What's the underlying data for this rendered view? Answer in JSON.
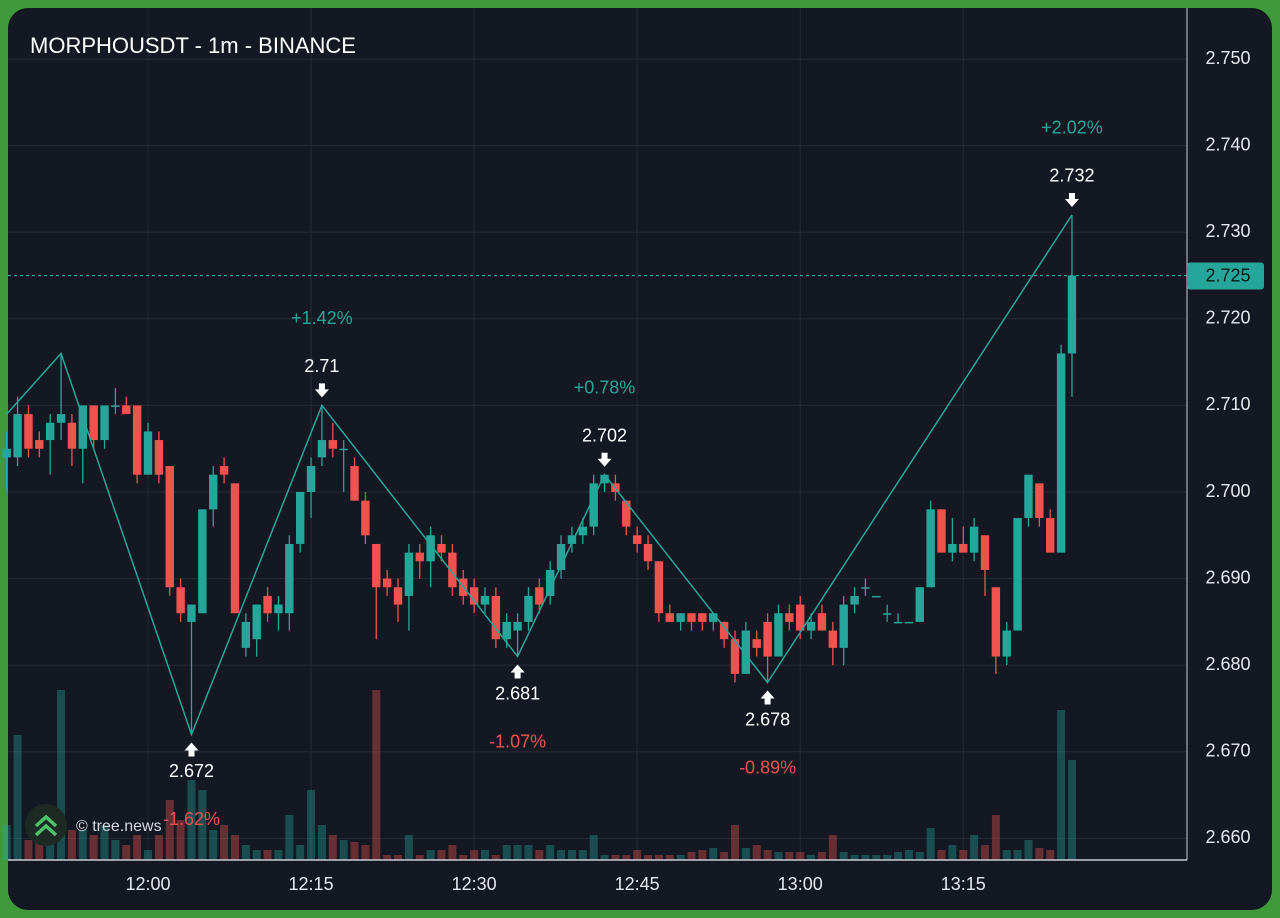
{
  "chart_data": {
    "type": "candlestick",
    "title": "MORPHOUSDT - 1m - BINANCE",
    "watermark": "© tree.news",
    "x": [
      "11:47",
      "11:48",
      "11:49",
      "11:50",
      "11:51",
      "11:52",
      "11:53",
      "11:54",
      "11:55",
      "11:56",
      "11:57",
      "11:58",
      "11:59",
      "12:00",
      "12:01",
      "12:02",
      "12:03",
      "12:04",
      "12:05",
      "12:06",
      "12:07",
      "12:08",
      "12:09",
      "12:10",
      "12:11",
      "12:12",
      "12:13",
      "12:14",
      "12:15",
      "12:16",
      "12:17",
      "12:18",
      "12:19",
      "12:20",
      "12:21",
      "12:22",
      "12:23",
      "12:24",
      "12:25",
      "12:26",
      "12:27",
      "12:28",
      "12:29",
      "12:30",
      "12:31",
      "12:32",
      "12:33",
      "12:34",
      "12:35",
      "12:36",
      "12:37",
      "12:38",
      "12:39",
      "12:40",
      "12:41",
      "12:42",
      "12:43",
      "12:44",
      "12:45",
      "12:46",
      "12:47",
      "12:48",
      "12:49",
      "12:50",
      "12:51",
      "12:52",
      "12:53",
      "12:54",
      "12:55",
      "12:56",
      "12:57",
      "12:58",
      "12:59",
      "13:00",
      "13:01",
      "13:02",
      "13:03",
      "13:04",
      "13:05",
      "13:06",
      "13:07",
      "13:08",
      "13:09",
      "13:10",
      "13:11",
      "13:12",
      "13:13",
      "13:14",
      "13:15",
      "13:16",
      "13:17",
      "13:18",
      "13:19",
      "13:20",
      "13:21",
      "13:22",
      "13:23",
      "13:24",
      "13:25"
    ],
    "ohlc": [
      [
        2.704,
        2.707,
        2.7,
        2.705
      ],
      [
        2.704,
        2.711,
        2.703,
        2.709
      ],
      [
        2.709,
        2.71,
        2.704,
        2.705
      ],
      [
        2.706,
        2.707,
        2.704,
        2.705
      ],
      [
        2.706,
        2.709,
        2.702,
        2.708
      ],
      [
        2.708,
        2.716,
        2.706,
        2.709
      ],
      [
        2.708,
        2.709,
        2.703,
        2.705
      ],
      [
        2.705,
        2.71,
        2.701,
        2.71
      ],
      [
        2.71,
        2.71,
        2.705,
        2.706
      ],
      [
        2.706,
        2.71,
        2.705,
        2.71
      ],
      [
        2.71,
        2.712,
        2.709,
        2.71
      ],
      [
        2.71,
        2.711,
        2.709,
        2.709
      ],
      [
        2.71,
        2.71,
        2.701,
        2.702
      ],
      [
        2.702,
        2.708,
        2.702,
        2.707
      ],
      [
        2.706,
        2.707,
        2.701,
        2.702
      ],
      [
        2.703,
        2.703,
        2.688,
        2.689
      ],
      [
        2.689,
        2.69,
        2.685,
        2.686
      ],
      [
        2.685,
        2.687,
        2.672,
        2.687
      ],
      [
        2.686,
        2.698,
        2.686,
        2.698
      ],
      [
        2.698,
        2.703,
        2.696,
        2.702
      ],
      [
        2.703,
        2.704,
        2.701,
        2.702
      ],
      [
        2.701,
        2.701,
        2.686,
        2.686
      ],
      [
        2.682,
        2.686,
        2.681,
        2.685
      ],
      [
        2.683,
        2.687,
        2.681,
        2.687
      ],
      [
        2.688,
        2.689,
        2.685,
        2.686
      ],
      [
        2.686,
        2.688,
        2.684,
        2.687
      ],
      [
        2.686,
        2.695,
        2.684,
        2.694
      ],
      [
        2.694,
        2.7,
        2.693,
        2.7
      ],
      [
        2.7,
        2.704,
        2.697,
        2.703
      ],
      [
        2.704,
        2.71,
        2.703,
        2.706
      ],
      [
        2.706,
        2.708,
        2.704,
        2.705
      ],
      [
        2.705,
        2.706,
        2.7,
        2.705
      ],
      [
        2.703,
        2.704,
        2.699,
        2.699
      ],
      [
        2.699,
        2.7,
        2.694,
        2.695
      ],
      [
        2.694,
        2.694,
        2.683,
        2.689
      ],
      [
        2.69,
        2.691,
        2.688,
        2.689
      ],
      [
        2.689,
        2.69,
        2.685,
        2.687
      ],
      [
        2.688,
        2.694,
        2.684,
        2.693
      ],
      [
        2.693,
        2.694,
        2.69,
        2.692
      ],
      [
        2.692,
        2.696,
        2.689,
        2.695
      ],
      [
        2.694,
        2.695,
        2.692,
        2.693
      ],
      [
        2.693,
        2.694,
        2.688,
        2.689
      ],
      [
        2.69,
        2.691,
        2.687,
        2.688
      ],
      [
        2.689,
        2.69,
        2.686,
        2.687
      ],
      [
        2.687,
        2.689,
        2.686,
        2.688
      ],
      [
        2.688,
        2.689,
        2.682,
        2.683
      ],
      [
        2.683,
        2.686,
        2.682,
        2.685
      ],
      [
        2.684,
        2.686,
        2.681,
        2.685
      ],
      [
        2.685,
        2.689,
        2.684,
        2.688
      ],
      [
        2.689,
        2.69,
        2.686,
        2.687
      ],
      [
        2.688,
        2.692,
        2.687,
        2.691
      ],
      [
        2.691,
        2.695,
        2.69,
        2.694
      ],
      [
        2.694,
        2.696,
        2.693,
        2.695
      ],
      [
        2.695,
        2.697,
        2.694,
        2.696
      ],
      [
        2.696,
        2.702,
        2.695,
        2.701
      ],
      [
        2.701,
        2.702,
        2.7,
        2.702
      ],
      [
        2.701,
        2.702,
        2.699,
        2.7
      ],
      [
        2.699,
        2.699,
        2.695,
        2.696
      ],
      [
        2.695,
        2.696,
        2.693,
        2.694
      ],
      [
        2.694,
        2.695,
        2.691,
        2.692
      ],
      [
        2.692,
        2.692,
        2.685,
        2.686
      ],
      [
        2.686,
        2.687,
        2.685,
        2.685
      ],
      [
        2.685,
        2.686,
        2.684,
        2.686
      ],
      [
        2.686,
        2.686,
        2.684,
        2.685
      ],
      [
        2.686,
        2.686,
        2.684,
        2.685
      ],
      [
        2.685,
        2.686,
        2.684,
        2.686
      ],
      [
        2.685,
        2.685,
        2.682,
        2.683
      ],
      [
        2.683,
        2.684,
        2.678,
        2.679
      ],
      [
        2.679,
        2.685,
        2.679,
        2.684
      ],
      [
        2.683,
        2.684,
        2.681,
        2.682
      ],
      [
        2.685,
        2.686,
        2.678,
        2.681
      ],
      [
        2.681,
        2.687,
        2.681,
        2.686
      ],
      [
        2.686,
        2.687,
        2.684,
        2.685
      ],
      [
        2.687,
        2.688,
        2.683,
        2.684
      ],
      [
        2.684,
        2.686,
        2.683,
        2.685
      ],
      [
        2.686,
        2.687,
        2.684,
        2.684
      ],
      [
        2.684,
        2.685,
        2.68,
        2.682
      ],
      [
        2.682,
        2.688,
        2.68,
        2.687
      ],
      [
        2.687,
        2.689,
        2.686,
        2.688
      ],
      [
        2.689,
        2.69,
        2.688,
        2.689
      ],
      [
        2.688,
        2.688,
        2.688,
        2.688
      ],
      [
        2.686,
        2.687,
        2.685,
        2.686
      ],
      [
        2.685,
        2.686,
        2.685,
        2.685
      ],
      [
        2.685,
        2.685,
        2.685,
        2.685
      ],
      [
        2.685,
        2.689,
        2.685,
        2.689
      ],
      [
        2.689,
        2.699,
        2.689,
        2.698
      ],
      [
        2.698,
        2.698,
        2.693,
        2.693
      ],
      [
        2.693,
        2.697,
        2.692,
        2.694
      ],
      [
        2.694,
        2.696,
        2.693,
        2.693
      ],
      [
        2.693,
        2.697,
        2.692,
        2.696
      ],
      [
        2.695,
        2.695,
        2.688,
        2.691
      ],
      [
        2.689,
        2.689,
        2.679,
        2.681
      ],
      [
        2.681,
        2.685,
        2.68,
        2.684
      ],
      [
        2.684,
        2.697,
        2.684,
        2.697
      ],
      [
        2.697,
        2.702,
        2.696,
        2.702
      ],
      [
        2.701,
        2.701,
        2.696,
        2.697
      ],
      [
        2.697,
        2.698,
        2.693,
        2.693
      ],
      [
        2.693,
        2.717,
        2.693,
        2.716
      ],
      [
        2.716,
        2.732,
        2.711,
        2.725
      ]
    ],
    "volume": [
      35,
      125,
      20,
      20,
      30,
      170,
      30,
      30,
      25,
      35,
      20,
      15,
      25,
      10,
      25,
      60,
      40,
      80,
      70,
      30,
      35,
      25,
      15,
      10,
      10,
      10,
      45,
      15,
      70,
      35,
      25,
      20,
      18,
      15,
      170,
      5,
      5,
      25,
      5,
      10,
      10,
      15,
      5,
      10,
      10,
      5,
      15,
      15,
      15,
      10,
      15,
      10,
      10,
      10,
      25,
      5,
      5,
      5,
      10,
      5,
      5,
      5,
      5,
      8,
      10,
      12,
      8,
      35,
      12,
      15,
      10,
      8,
      8,
      8,
      5,
      8,
      25,
      8,
      5,
      5,
      5,
      5,
      8,
      10,
      8,
      32,
      10,
      15,
      10,
      25,
      15,
      45,
      10,
      10,
      20,
      12,
      10,
      150,
      100
    ],
    "up_color": "#26a69a",
    "down_color": "#ef5350",
    "ylim": [
      2.6575,
      2.7559
    ],
    "yticks": [
      {
        "value": 2.66,
        "label": "2.660"
      },
      {
        "value": 2.67,
        "label": "2.670"
      },
      {
        "value": 2.68,
        "label": "2.680"
      },
      {
        "value": 2.69,
        "label": "2.690"
      },
      {
        "value": 2.7,
        "label": "2.700"
      },
      {
        "value": 2.71,
        "label": "2.710"
      },
      {
        "value": 2.72,
        "label": "2.720"
      },
      {
        "value": 2.73,
        "label": "2.730"
      },
      {
        "value": 2.74,
        "label": "2.740"
      },
      {
        "value": 2.75,
        "label": "2.750"
      }
    ],
    "xticks": [
      "12:00",
      "12:15",
      "12:30",
      "12:45",
      "13:00",
      "13:15"
    ],
    "grid": true,
    "last_price": {
      "value": 2.725,
      "label": "2.725"
    },
    "zigzag": {
      "x": [
        "11:47",
        "11:52",
        "12:04",
        "12:16",
        "12:34",
        "12:42",
        "12:57",
        "13:25"
      ],
      "values": [
        2.709,
        2.716,
        2.672,
        2.71,
        2.681,
        2.702,
        2.678,
        2.732
      ],
      "changes": [
        null,
        null,
        "-1.62%",
        "+1.42%",
        "-1.07%",
        "+0.78%",
        "-0.89%",
        "+2.02%"
      ],
      "color": "#26a69a"
    }
  }
}
